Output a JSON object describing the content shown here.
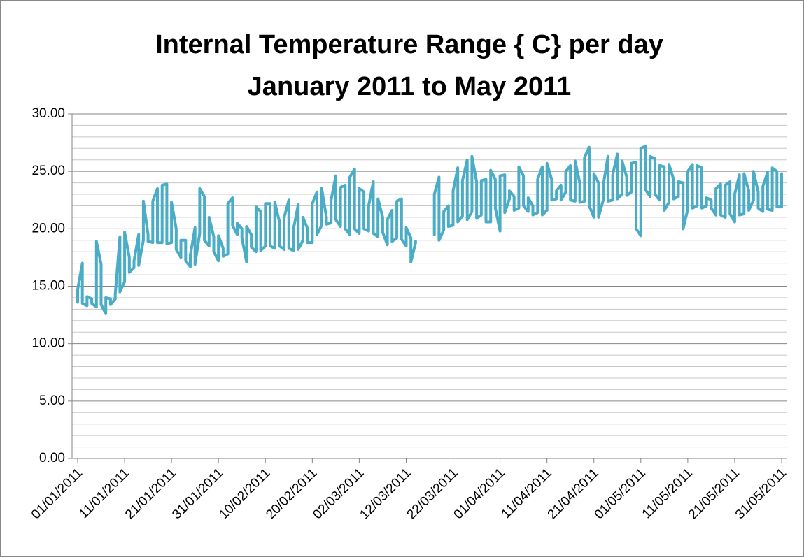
{
  "chart_data": {
    "type": "line",
    "title": "Internal Temperature Range { C} per day",
    "subtitle": "January 2011 to May 2011",
    "color": "#4bacc6",
    "grid": true,
    "ylim": [
      0,
      30
    ],
    "yticks": [
      {
        "value": 0,
        "label": "0.00"
      },
      {
        "value": 5,
        "label": "5.00"
      },
      {
        "value": 10,
        "label": "10.00"
      },
      {
        "value": 15,
        "label": "15.00"
      },
      {
        "value": 20,
        "label": "20.00"
      },
      {
        "value": 25,
        "label": "25.00"
      },
      {
        "value": 30,
        "label": "30.00"
      }
    ],
    "minor_yticks": [
      1,
      2,
      3,
      4,
      6,
      7,
      8,
      9,
      11,
      12,
      13,
      14,
      16,
      17,
      18,
      19,
      21,
      22,
      23,
      24,
      26,
      27,
      28,
      29
    ],
    "xlim": [
      "01/01/2011",
      "31/05/2011"
    ],
    "xticks": [
      "01/01/2011",
      "11/01/2011",
      "21/01/2011",
      "31/01/2011",
      "10/02/2011",
      "20/02/2011",
      "02/03/2011",
      "12/03/2011",
      "22/03/2011",
      "01/04/2011",
      "11/04/2011",
      "21/04/2011",
      "01/05/2011",
      "11/05/2011",
      "21/05/2011",
      "31/05/2011"
    ],
    "x": [
      "01/01/2011",
      "02/01/2011",
      "03/01/2011",
      "04/01/2011",
      "05/01/2011",
      "06/01/2011",
      "07/01/2011",
      "08/01/2011",
      "09/01/2011",
      "10/01/2011",
      "11/01/2011",
      "12/01/2011",
      "13/01/2011",
      "14/01/2011",
      "15/01/2011",
      "16/01/2011",
      "17/01/2011",
      "18/01/2011",
      "19/01/2011",
      "20/01/2011",
      "21/01/2011",
      "22/01/2011",
      "23/01/2011",
      "24/01/2011",
      "25/01/2011",
      "26/01/2011",
      "27/01/2011",
      "28/01/2011",
      "29/01/2011",
      "30/01/2011",
      "31/01/2011",
      "01/02/2011",
      "02/02/2011",
      "03/02/2011",
      "04/02/2011",
      "05/02/2011",
      "06/02/2011",
      "07/02/2011",
      "08/02/2011",
      "09/02/2011",
      "10/02/2011",
      "11/02/2011",
      "12/02/2011",
      "13/02/2011",
      "14/02/2011",
      "15/02/2011",
      "16/02/2011",
      "17/02/2011",
      "18/02/2011",
      "19/02/2011",
      "20/02/2011",
      "21/02/2011",
      "22/02/2011",
      "23/02/2011",
      "24/02/2011",
      "25/02/2011",
      "26/02/2011",
      "27/02/2011",
      "28/02/2011",
      "01/03/2011",
      "02/03/2011",
      "03/03/2011",
      "04/03/2011",
      "05/03/2011",
      "06/03/2011",
      "07/03/2011",
      "08/03/2011",
      "09/03/2011",
      "10/03/2011",
      "11/03/2011",
      "12/03/2011",
      "13/03/2011",
      "14/03/2011",
      "15/03/2011",
      "16/03/2011",
      "17/03/2011",
      "18/03/2011",
      "19/03/2011",
      "20/03/2011",
      "21/03/2011",
      "22/03/2011",
      "23/03/2011",
      "24/03/2011",
      "25/03/2011",
      "26/03/2011",
      "27/03/2011",
      "28/03/2011",
      "29/03/2011",
      "30/03/2011",
      "31/03/2011",
      "01/04/2011",
      "02/04/2011",
      "03/04/2011",
      "04/04/2011",
      "05/04/2011",
      "06/04/2011",
      "07/04/2011",
      "08/04/2011",
      "09/04/2011",
      "10/04/2011",
      "11/04/2011",
      "12/04/2011",
      "13/04/2011",
      "14/04/2011",
      "15/04/2011",
      "16/04/2011",
      "17/04/2011",
      "18/04/2011",
      "19/04/2011",
      "20/04/2011",
      "21/04/2011",
      "22/04/2011",
      "23/04/2011",
      "24/04/2011",
      "25/04/2011",
      "26/04/2011",
      "27/04/2011",
      "28/04/2011",
      "29/04/2011",
      "30/04/2011",
      "01/05/2011",
      "02/05/2011",
      "03/05/2011",
      "04/05/2011",
      "05/05/2011",
      "06/05/2011",
      "07/05/2011",
      "08/05/2011",
      "09/05/2011",
      "10/05/2011",
      "11/05/2011",
      "12/05/2011",
      "13/05/2011",
      "14/05/2011",
      "15/05/2011",
      "16/05/2011",
      "17/05/2011",
      "18/05/2011",
      "19/05/2011",
      "20/05/2011",
      "21/05/2011",
      "22/05/2011",
      "23/05/2011",
      "24/05/2011",
      "25/05/2011",
      "26/05/2011",
      "27/05/2011",
      "28/05/2011",
      "29/05/2011",
      "30/05/2011",
      "31/05/2011"
    ],
    "values": [
      [
        13.6,
        14.7
      ],
      [
        13.5,
        17.0
      ],
      [
        13.3,
        14.1
      ],
      [
        13.5,
        13.9
      ],
      [
        13.2,
        18.9
      ],
      [
        13.4,
        16.9
      ],
      [
        12.6,
        14.0
      ],
      [
        13.4,
        13.9
      ],
      [
        13.9,
        14.3
      ],
      [
        14.5,
        19.3
      ],
      [
        15.4,
        19.7
      ],
      [
        16.2,
        17.5
      ],
      [
        16.6,
        17.2
      ],
      [
        16.8,
        19.5
      ],
      [
        19.0,
        22.4
      ],
      [
        18.9,
        19.5
      ],
      [
        18.8,
        22.4
      ],
      [
        18.8,
        23.5
      ],
      [
        18.8,
        23.8
      ],
      [
        18.7,
        23.9
      ],
      [
        18.8,
        22.3
      ],
      [
        18.2,
        20.0
      ],
      [
        17.5,
        19.0
      ],
      [
        17.2,
        19.0
      ],
      [
        16.7,
        17.7
      ],
      [
        16.9,
        20.1
      ],
      [
        19.6,
        23.5
      ],
      [
        19.0,
        22.8
      ],
      [
        18.5,
        21.0
      ],
      [
        18.0,
        19.3
      ],
      [
        17.2,
        19.4
      ],
      [
        17.6,
        18.3
      ],
      [
        17.8,
        22.2
      ],
      [
        20.3,
        22.7
      ],
      [
        19.5,
        20.5
      ],
      [
        19.2,
        20.0
      ],
      [
        17.1,
        20.2
      ],
      [
        18.4,
        19.5
      ],
      [
        18.0,
        21.9
      ],
      [
        18.1,
        21.5
      ],
      [
        18.5,
        22.2
      ],
      [
        18.5,
        22.2
      ],
      [
        18.3,
        22.3
      ],
      [
        18.5,
        20.6
      ],
      [
        18.2,
        21.0
      ],
      [
        18.3,
        22.5
      ],
      [
        18.1,
        20.0
      ],
      [
        18.2,
        22.1
      ],
      [
        19.0,
        21.0
      ],
      [
        18.8,
        20.0
      ],
      [
        18.8,
        22.2
      ],
      [
        19.5,
        23.2
      ],
      [
        20.3,
        23.5
      ],
      [
        20.4,
        21.0
      ],
      [
        20.5,
        22.5
      ],
      [
        20.8,
        24.6
      ],
      [
        20.2,
        23.6
      ],
      [
        20.0,
        23.8
      ],
      [
        19.5,
        24.5
      ],
      [
        20.0,
        25.2
      ],
      [
        19.6,
        23.5
      ],
      [
        20.0,
        23.2
      ],
      [
        19.8,
        22.0
      ],
      [
        19.6,
        24.1
      ],
      [
        19.3,
        22.6
      ],
      [
        19.7,
        21.0
      ],
      [
        18.6,
        20.8
      ],
      [
        18.9,
        21.6
      ],
      [
        19.2,
        22.4
      ],
      [
        19.1,
        22.6
      ],
      [
        18.5,
        20.1
      ],
      [
        17.1,
        19.2
      ],
      [
        18.8,
        18.9
      ],
      null,
      null,
      null,
      [
        19.5,
        23.0
      ],
      [
        19.0,
        24.5
      ],
      [
        19.9,
        21.5
      ],
      [
        20.2,
        22.0
      ],
      [
        20.3,
        23.3
      ],
      [
        20.6,
        25.3
      ],
      [
        21.1,
        24.2
      ],
      [
        20.8,
        26.0
      ],
      [
        21.5,
        26.3
      ],
      [
        20.9,
        24.1
      ],
      [
        21.2,
        24.2
      ],
      [
        20.6,
        24.3
      ],
      [
        20.6,
        25.1
      ],
      [
        21.8,
        24.3
      ],
      [
        19.8,
        24.6
      ],
      [
        21.4,
        24.7
      ],
      [
        22.6,
        23.3
      ],
      [
        21.6,
        22.8
      ],
      [
        21.8,
        25.4
      ],
      [
        22.0,
        24.6
      ],
      [
        21.5,
        22.7
      ],
      [
        21.2,
        22.0
      ],
      [
        21.4,
        24.3
      ],
      [
        21.2,
        25.4
      ],
      [
        21.6,
        25.7
      ],
      [
        22.5,
        24.3
      ],
      [
        22.6,
        23.3
      ],
      [
        22.5,
        23.8
      ],
      [
        23.2,
        25.0
      ],
      [
        22.5,
        25.5
      ],
      [
        22.4,
        25.9
      ],
      [
        22.3,
        24.0
      ],
      [
        22.4,
        26.2
      ],
      [
        22.0,
        27.1
      ],
      [
        21.0,
        24.8
      ],
      [
        21.0,
        24.0
      ],
      [
        22.5,
        23.8
      ],
      [
        22.4,
        26.3
      ],
      [
        22.5,
        24.7
      ],
      [
        22.6,
        26.5
      ],
      [
        23.0,
        25.9
      ],
      [
        22.9,
        24.5
      ],
      [
        23.2,
        25.7
      ],
      [
        20.0,
        25.8
      ],
      [
        19.4,
        27.0
      ],
      [
        23.4,
        27.2
      ],
      [
        22.8,
        26.3
      ],
      [
        23.0,
        26.1
      ],
      [
        22.5,
        25.5
      ],
      [
        21.6,
        25.4
      ],
      [
        22.3,
        25.6
      ],
      [
        22.6,
        24.3
      ],
      [
        22.8,
        24.1
      ],
      [
        20.0,
        24.0
      ],
      [
        21.7,
        25.0
      ],
      [
        21.8,
        25.6
      ],
      [
        22.0,
        25.5
      ],
      [
        21.8,
        25.3
      ],
      [
        22.0,
        22.7
      ],
      [
        21.8,
        22.5
      ],
      [
        21.2,
        23.5
      ],
      [
        21.2,
        23.9
      ],
      [
        21.0,
        23.8
      ],
      [
        21.3,
        24.1
      ],
      [
        20.6,
        23.0
      ],
      [
        21.2,
        24.7
      ],
      [
        21.3,
        24.8
      ],
      [
        21.6,
        23.3
      ],
      [
        22.5,
        25.0
      ],
      [
        21.8,
        23.2
      ],
      [
        21.5,
        23.7
      ],
      [
        21.7,
        24.9
      ],
      [
        21.6,
        25.3
      ],
      [
        21.9,
        25.0
      ],
      [
        21.9,
        24.8
      ]
    ]
  }
}
